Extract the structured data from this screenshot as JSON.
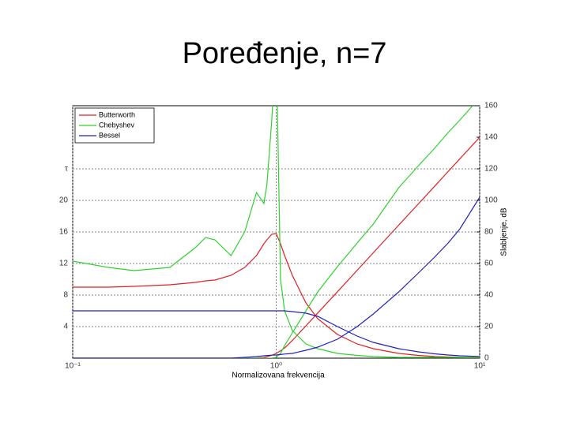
{
  "chart_data": {
    "type": "line",
    "title": "Poređenje, n=7",
    "x_label": "Normalizovana frekvencija",
    "y2_label": "Slabljenje, dB",
    "log_x": true,
    "grid": true,
    "legend": "upper left",
    "xlim": [
      0.1,
      10
    ],
    "xticks": [
      {
        "value": 0.1,
        "label": "10⁻¹"
      },
      {
        "value": 1,
        "label": "10⁰"
      },
      {
        "value": 10,
        "label": "10¹"
      }
    ],
    "ylim": [
      0,
      32
    ],
    "yticks": [
      4,
      8,
      12,
      16,
      20,
      {
        "value": 24,
        "label": "τ"
      }
    ],
    "y2lim": [
      0,
      160
    ],
    "y2ticks": [
      0,
      20,
      40,
      60,
      80,
      100,
      120,
      140,
      160
    ],
    "x": [
      0.1,
      0.15,
      0.2,
      0.3,
      0.4,
      0.45,
      0.5,
      0.6,
      0.7,
      0.8,
      0.87,
      0.9,
      0.95,
      1.0,
      1.05,
      1.1,
      1.2,
      1.4,
      1.6,
      2,
      2.5,
      3,
      4,
      5,
      6,
      7,
      8,
      10
    ],
    "series": [
      {
        "name": "Butterworth",
        "color": "#e02020",
        "values": [
          9.0,
          9.0,
          9.1,
          9.3,
          9.6,
          9.8,
          9.9,
          10.5,
          11.5,
          13,
          14.5,
          15,
          15.7,
          15.8,
          14.5,
          13,
          10.5,
          7,
          5,
          3,
          1.8,
          1.2,
          0.6,
          0.35,
          0.2,
          0.15,
          0.1,
          0.05
        ],
        "attenuation": [
          0,
          0,
          0,
          0,
          0,
          0,
          0,
          0,
          0,
          0.1,
          0.4,
          0.9,
          1.8,
          3.0,
          4.6,
          6.5,
          11.2,
          20.5,
          28.6,
          42.1,
          55.7,
          66.8,
          84.3,
          97.8,
          108.9,
          118.3,
          126.4,
          140
        ]
      },
      {
        "name": "Chebyshev",
        "color": "#30d030",
        "values": [
          12.3,
          11.5,
          11.1,
          11.5,
          14,
          15.3,
          15,
          13,
          16,
          21,
          19.6,
          22,
          30,
          40,
          10,
          6,
          3.5,
          1.8,
          1.2,
          0.6,
          0.35,
          0.2,
          0.1,
          0.1,
          0.1,
          0.1,
          0.1,
          0.1
        ],
        "attenuation": [
          0,
          0,
          0,
          0,
          0,
          0,
          0,
          0,
          0,
          0,
          0,
          0,
          0,
          0.5,
          3,
          8,
          16,
          30,
          42,
          58,
          73,
          85,
          108,
          122,
          133,
          143,
          151,
          165
        ]
      },
      {
        "name": "Bessel",
        "color": "#2020c0",
        "values": [
          6,
          6,
          6,
          6,
          6,
          6,
          6,
          6,
          6,
          6,
          6,
          6,
          6,
          6,
          6,
          6,
          5.9,
          5.7,
          5.3,
          4.0,
          2.8,
          2,
          1.2,
          0.8,
          0.55,
          0.4,
          0.3,
          0.2
        ],
        "attenuation": [
          0,
          0,
          0,
          0,
          0,
          0,
          0,
          0,
          0.5,
          1,
          1.5,
          1.7,
          1.9,
          2,
          2.3,
          2.6,
          3,
          5,
          7,
          12,
          20,
          28,
          42,
          54,
          64,
          73,
          82,
          102
        ]
      }
    ]
  }
}
